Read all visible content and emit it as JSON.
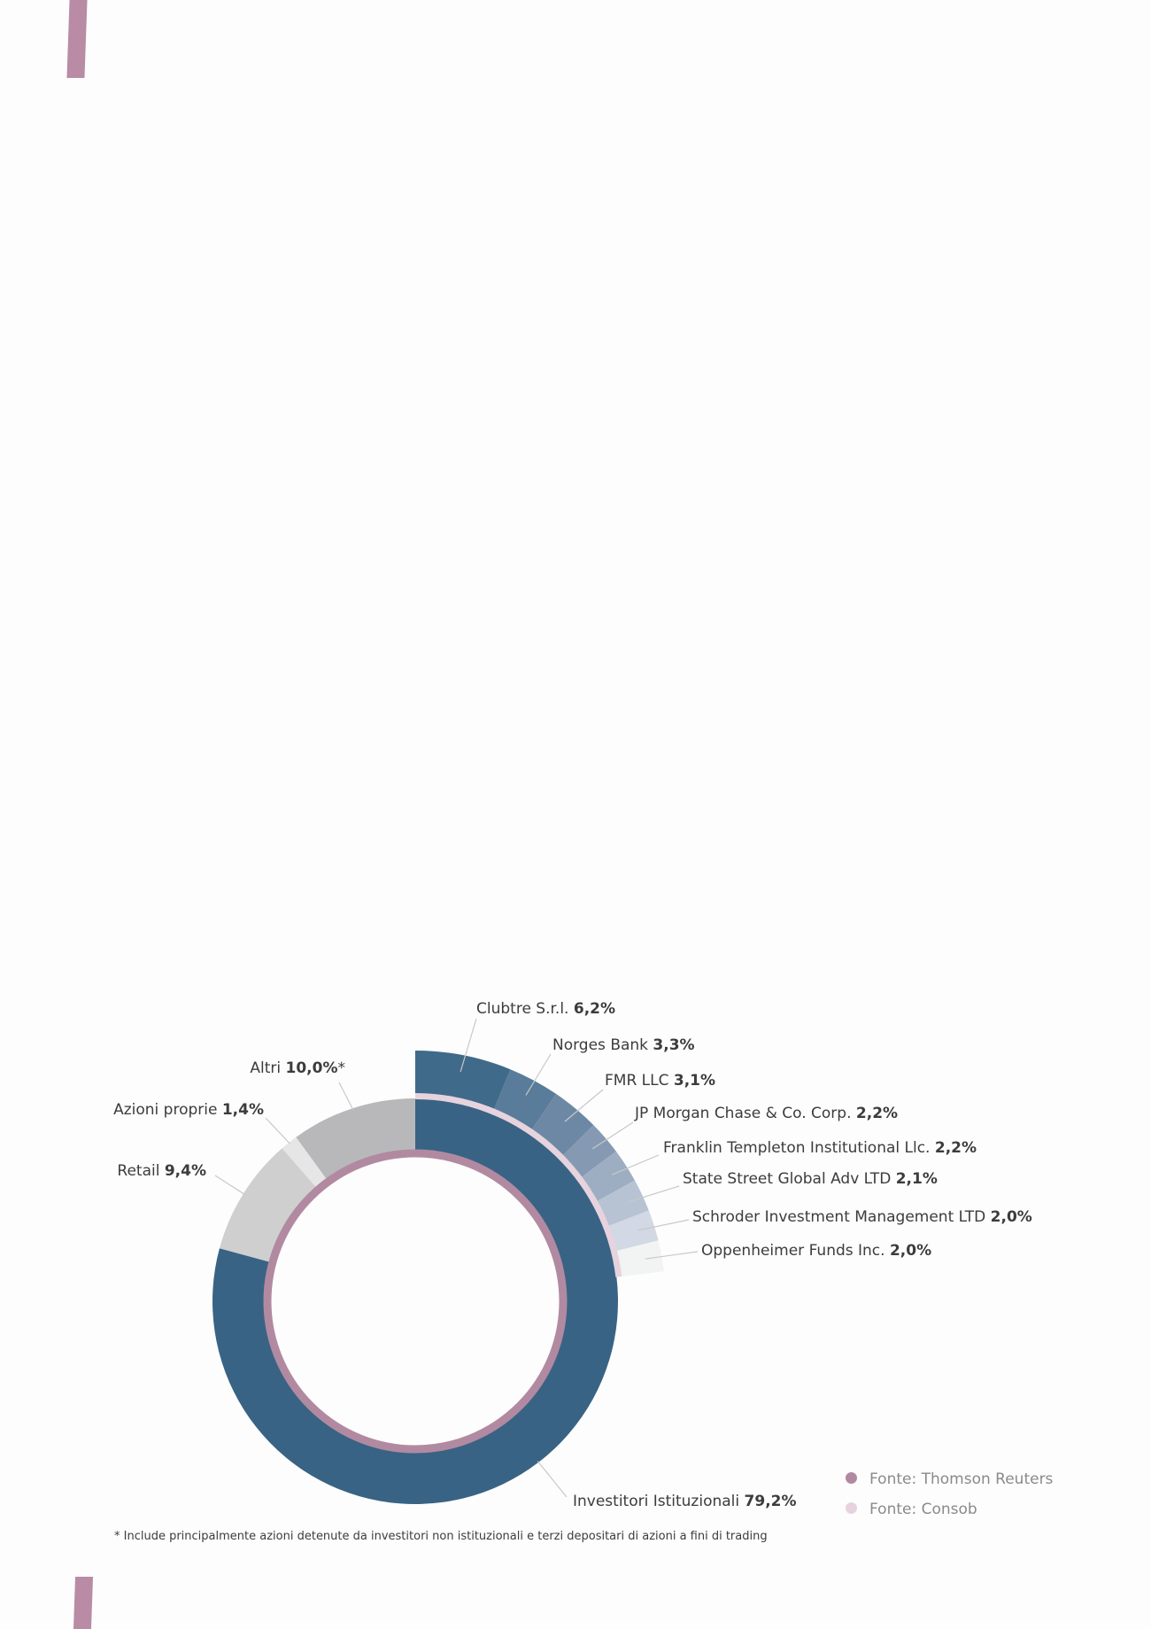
{
  "chart_data": [
    {
      "type": "pie",
      "ring": "inner",
      "slices": [
        {
          "label": "Investitori Istituzionali",
          "value": 79.2,
          "display": "79,2%",
          "color": "#396384"
        },
        {
          "label": "Retail",
          "value": 9.4,
          "display": "9,4%",
          "color": "#cfcfcf"
        },
        {
          "label": "Azioni proprie",
          "value": 1.4,
          "display": "1,4%",
          "color": "#e6e6e6"
        },
        {
          "label": "Altri",
          "value": 10.0,
          "display": "10,0%*",
          "color": "#b8b8ba"
        }
      ]
    },
    {
      "type": "pie",
      "ring": "outer",
      "slices": [
        {
          "label": "Clubtre S.r.l.",
          "value": 6.2,
          "display": "6,2%",
          "color": "#3f6a8a"
        },
        {
          "label": "Norges Bank",
          "value": 3.3,
          "display": "3,3%",
          "color": "#587c99"
        },
        {
          "label": "FMR LLC",
          "value": 3.1,
          "display": "3,1%",
          "color": "#6d88a4"
        },
        {
          "label": "JP Morgan Chase & Co. Corp.",
          "value": 2.2,
          "display": "2,2%",
          "color": "#8599b2"
        },
        {
          "label": "Franklin Templeton Institutional Llc.",
          "value": 2.2,
          "display": "2,2%",
          "color": "#9eaec2"
        },
        {
          "label": "State Street Global Adv LTD",
          "value": 2.1,
          "display": "2,1%",
          "color": "#b7c3d3"
        },
        {
          "label": "Schroder Investment Management LTD",
          "value": 2.0,
          "display": "2,0%",
          "color": "#d2d9e4"
        },
        {
          "label": "Oppenheimer Funds Inc.",
          "value": 2.0,
          "display": "2,0%",
          "color": "#f2f4f3"
        }
      ]
    }
  ],
  "colors": {
    "thomson": "#b18aa1",
    "consob": "#e6d3de"
  },
  "legend": {
    "thomson": "Fonte: Thomson Reuters",
    "consob": "Fonte: Consob"
  },
  "footnote": "* Include principalmente azioni detenute da investitori non istituzionali e terzi depositari di azioni a fini di trading"
}
